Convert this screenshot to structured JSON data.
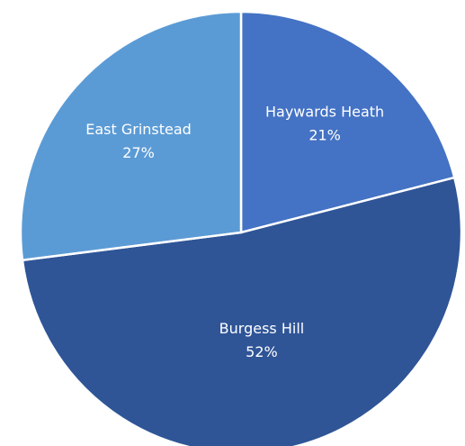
{
  "chart_data": {
    "type": "pie",
    "title": "",
    "categories": [
      "Haywards Heath",
      "Burgess Hill",
      "East Grinstead"
    ],
    "values": [
      21,
      52,
      27
    ],
    "labels": [
      {
        "name": "Haywards Heath",
        "percent": "21%"
      },
      {
        "name": "Burgess Hill",
        "percent": "52%"
      },
      {
        "name": "East Grinstead",
        "percent": "27%"
      }
    ],
    "colors": [
      "#4472c4",
      "#2f5597",
      "#5b9bd5"
    ],
    "start": "12 o'clock",
    "direction": "clockwise",
    "legend": "none"
  }
}
